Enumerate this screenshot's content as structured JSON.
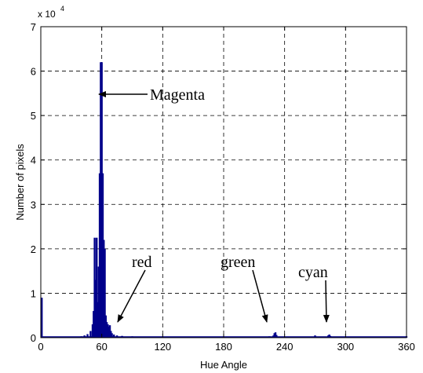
{
  "chart_data": {
    "type": "bar",
    "title": "",
    "xlabel": "Hue Angle",
    "ylabel": "Number of pixels",
    "xlim": [
      0,
      360
    ],
    "ylim": [
      0,
      7
    ],
    "y_exponent_label": {
      "base": "x 10",
      "power": "4"
    },
    "xticks": [
      0,
      60,
      120,
      180,
      240,
      300,
      360
    ],
    "yticks": [
      0,
      1,
      2,
      3,
      4,
      5,
      6,
      7
    ],
    "grid": true,
    "bar_color": "#00008b",
    "series": [
      {
        "x": [
          0,
          40,
          43,
          46,
          49,
          51,
          52,
          53,
          54,
          55,
          56,
          57,
          58,
          59,
          60,
          61,
          62,
          63,
          64,
          65,
          66,
          67,
          68,
          69,
          70,
          72,
          75,
          80,
          90,
          120,
          180,
          225,
          229,
          230,
          231,
          232,
          270,
          283,
          284,
          285,
          300,
          345,
          360
        ],
        "values": [
          0.9,
          0.03,
          0.05,
          0.08,
          0.15,
          0.3,
          0.6,
          2.25,
          1.3,
          2.25,
          0.8,
          1.6,
          3.7,
          6.2,
          6.2,
          3.7,
          2.2,
          2.0,
          0.5,
          0.35,
          0.3,
          0.25,
          0.28,
          0.15,
          0.1,
          0.07,
          0.05,
          0.04,
          0.03,
          0.02,
          0.02,
          0.03,
          0.05,
          0.1,
          0.12,
          0.06,
          0.05,
          0.05,
          0.07,
          0.04,
          0.02,
          0.02,
          0.03
        ]
      }
    ],
    "annotations": [
      {
        "text": "Magenta",
        "x": 60,
        "y": 5.5
      },
      {
        "text": "red",
        "x": 72,
        "y": 0.3
      },
      {
        "text": "green",
        "x": 229,
        "y": 0.15
      },
      {
        "text": "cyan",
        "x": 283,
        "y": 0.15
      }
    ]
  }
}
